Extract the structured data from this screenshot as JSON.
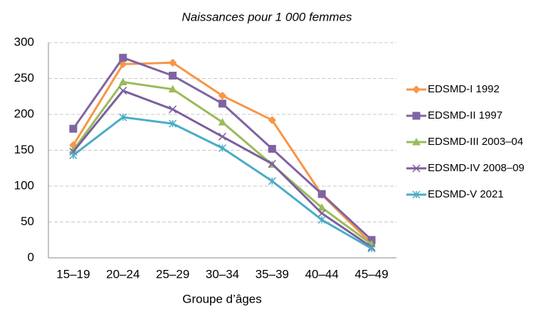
{
  "chart_data": {
    "type": "line",
    "title": "Naissances pour 1 000 femmes",
    "x_label": "Groupe d’âges",
    "categories": [
      "15–19",
      "20–24",
      "25–29",
      "30–34",
      "35–39",
      "40–44",
      "45–49"
    ],
    "series": [
      {
        "name": "EDSMD-I 1992",
        "color": "#f79646",
        "marker": "diamond",
        "values": [
          157,
          270,
          272,
          226,
          192,
          88,
          20
        ]
      },
      {
        "name": "EDSMD-II 1997",
        "color": "#8064a2",
        "marker": "square",
        "values": [
          180,
          279,
          254,
          215,
          152,
          89,
          25
        ]
      },
      {
        "name": "EDSMD-III 2003–04",
        "color": "#9bbb59",
        "marker": "triangle",
        "values": [
          150,
          245,
          235,
          189,
          130,
          70,
          19
        ]
      },
      {
        "name": "EDSMD-IV 2008–09",
        "color": "#7b5f9e",
        "marker": "x",
        "values": [
          148,
          233,
          207,
          169,
          131,
          62,
          15
        ]
      },
      {
        "name": "EDSMD-V 2021",
        "color": "#4bacc6",
        "marker": "star",
        "values": [
          143,
          196,
          187,
          153,
          107,
          53,
          13
        ]
      }
    ],
    "ylim": [
      0,
      300
    ],
    "yticks": [
      0,
      50,
      100,
      150,
      200,
      250,
      300
    ],
    "grid": true,
    "legend": "right"
  }
}
